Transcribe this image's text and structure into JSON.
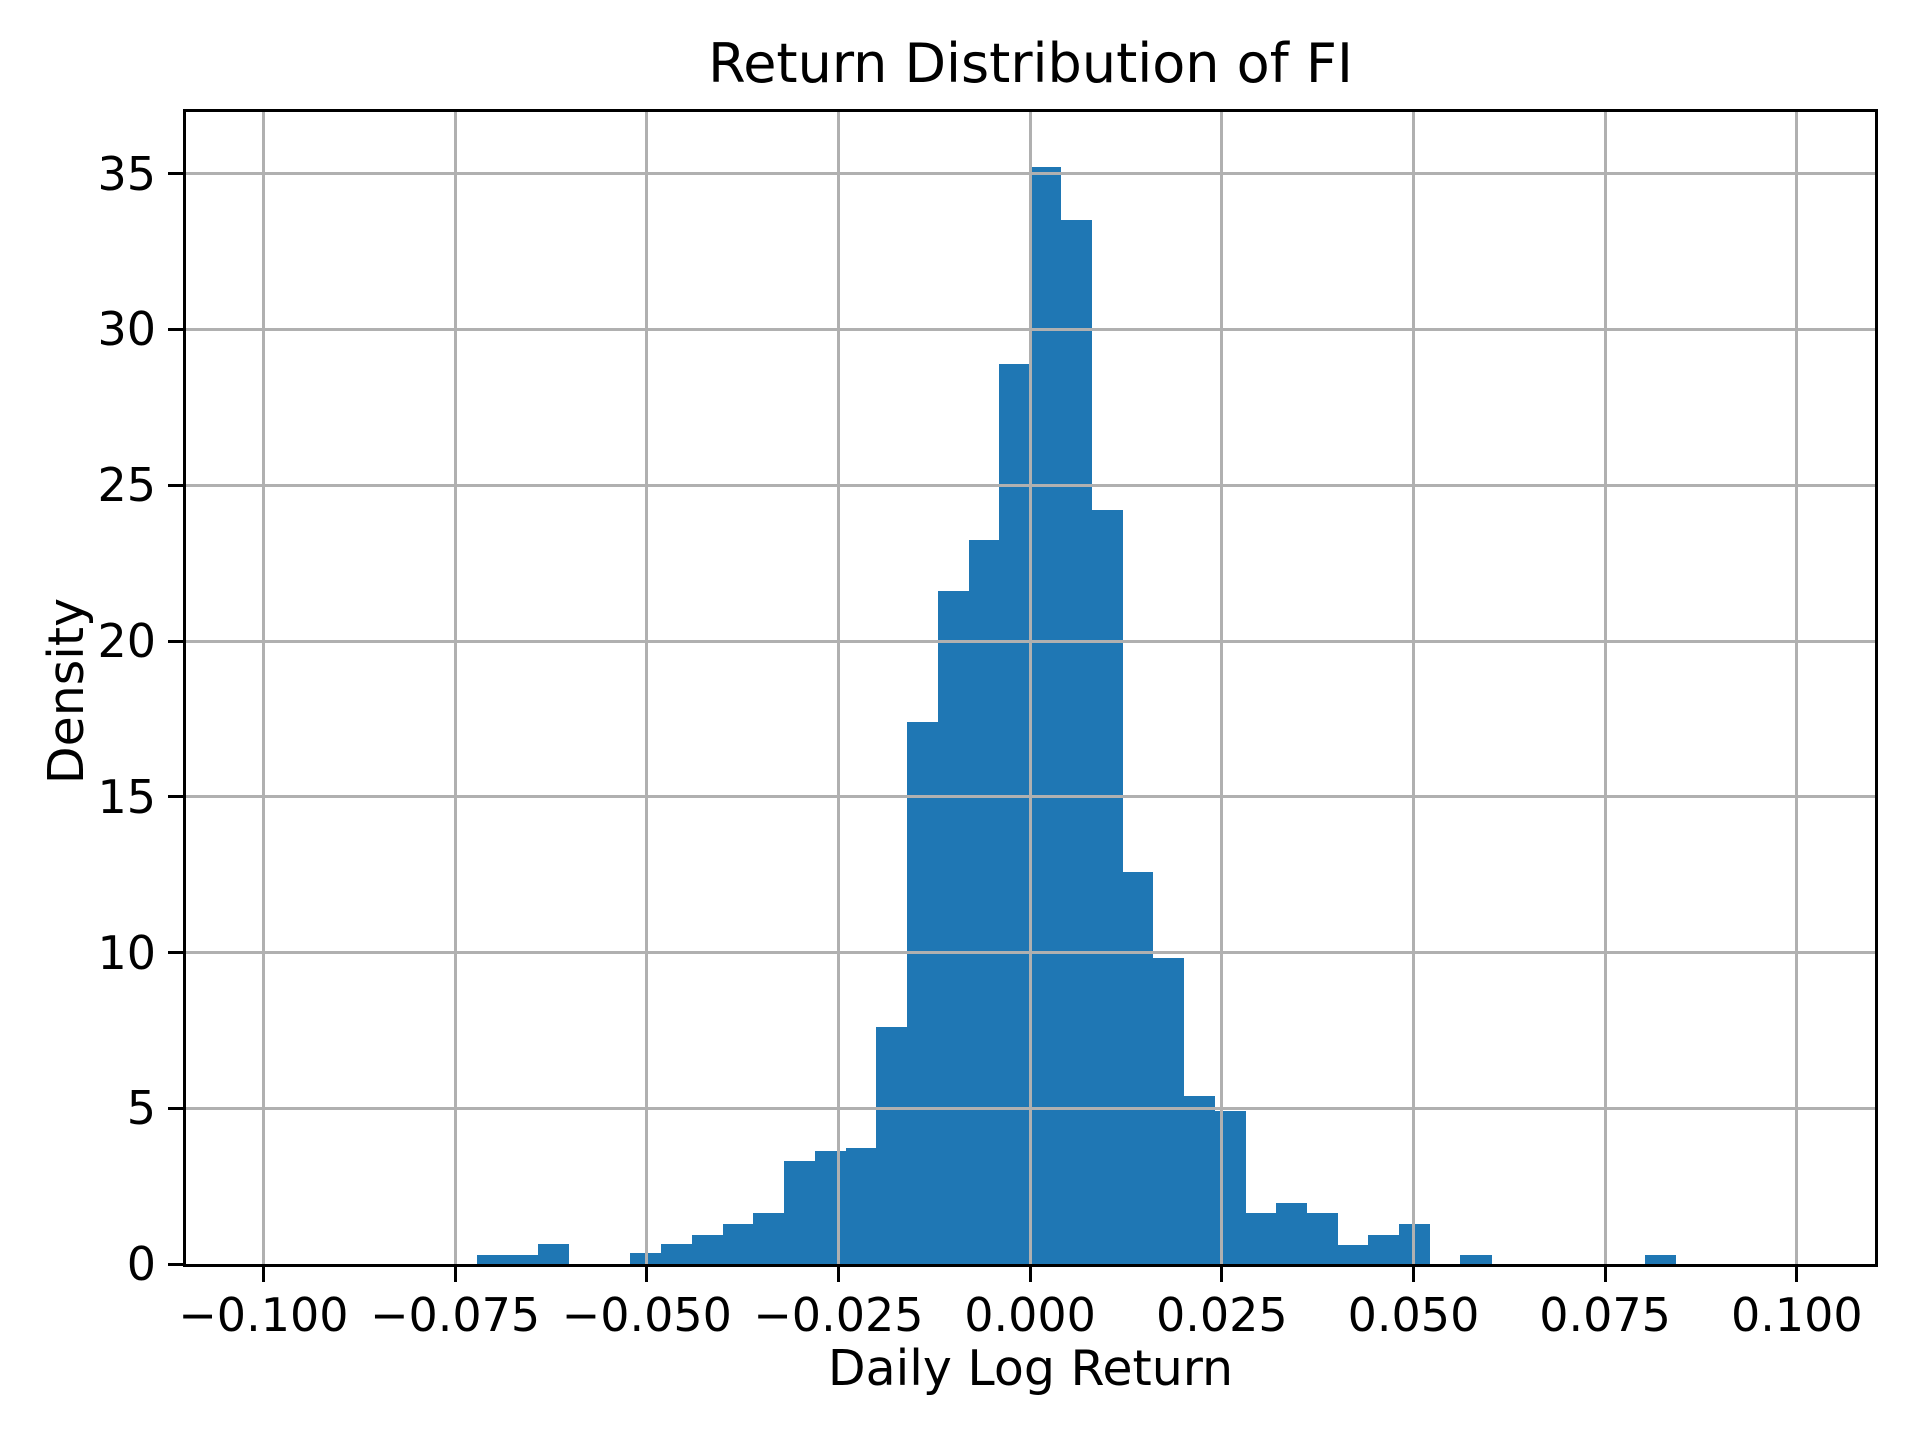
{
  "figure": {
    "title": "Return Distribution of FI",
    "xlabel": "Daily Log Return",
    "ylabel": "Density"
  },
  "colors": {
    "bar": "#1f77b4",
    "grid": "#b0b0b0",
    "spine": "#000000",
    "text": "#000000",
    "background": "#ffffff"
  },
  "chart_data": {
    "type": "bar",
    "subtype": "histogram",
    "title": "Return Distribution of FI",
    "xlabel": "Daily Log Return",
    "ylabel": "Density",
    "grid": true,
    "grid_above_bars": true,
    "legend": null,
    "xlim": [
      -0.1101,
      0.1102
    ],
    "ylim": [
      0,
      36.98
    ],
    "xticks": [
      {
        "value": -0.1,
        "label": "−0.100"
      },
      {
        "value": -0.075,
        "label": "−0.075"
      },
      {
        "value": -0.05,
        "label": "−0.050"
      },
      {
        "value": -0.025,
        "label": "−0.025"
      },
      {
        "value": 0.0,
        "label": "0.000"
      },
      {
        "value": 0.025,
        "label": "0.025"
      },
      {
        "value": 0.05,
        "label": "0.050"
      },
      {
        "value": 0.075,
        "label": "0.075"
      },
      {
        "value": 0.1,
        "label": "0.100"
      }
    ],
    "yticks": [
      {
        "value": 0,
        "label": "0"
      },
      {
        "value": 5,
        "label": "5"
      },
      {
        "value": 10,
        "label": "10"
      },
      {
        "value": 15,
        "label": "15"
      },
      {
        "value": 20,
        "label": "20"
      },
      {
        "value": 25,
        "label": "25"
      },
      {
        "value": 30,
        "label": "30"
      },
      {
        "value": 35,
        "label": "35"
      }
    ],
    "bin_start": -0.0722,
    "bin_width": 0.00401,
    "densities": [
      0.3,
      0.3,
      0.65,
      0,
      0,
      0.35,
      0.65,
      0.93,
      1.28,
      1.65,
      3.32,
      3.62,
      3.72,
      7.6,
      17.4,
      21.6,
      23.24,
      28.9,
      35.23,
      33.5,
      24.2,
      12.6,
      9.82,
      5.4,
      4.9,
      1.65,
      1.95,
      1.65,
      0.6,
      0.92,
      1.27,
      0,
      0.3,
      0,
      0,
      0,
      0,
      0,
      0.3
    ]
  }
}
